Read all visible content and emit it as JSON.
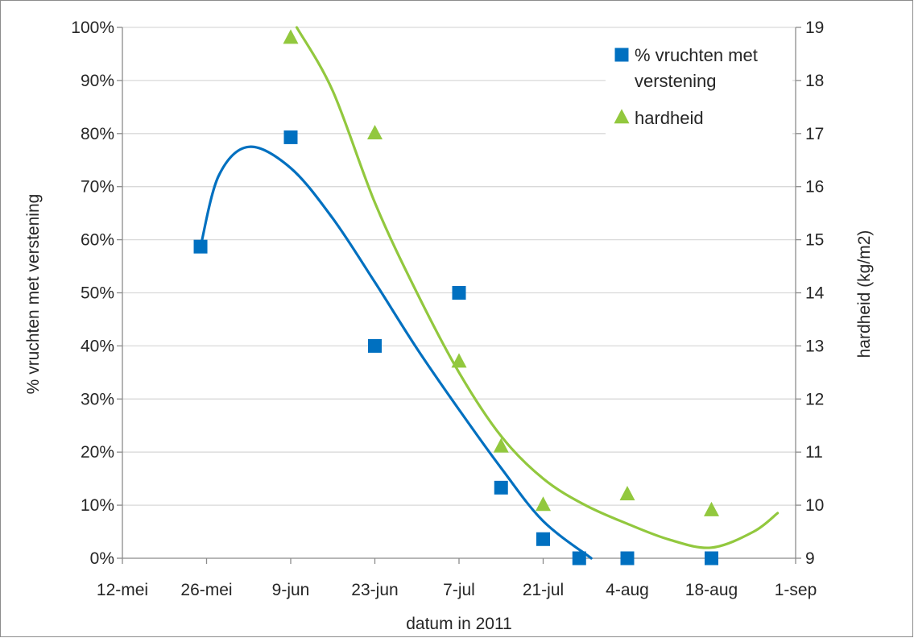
{
  "chart_data": {
    "type": "scatter",
    "xlabel": "datum in 2011",
    "ylabel_left": "% vruchten met verstening",
    "ylabel_right": "hardheid (kg/m2)",
    "x_ticks": [
      "12-mei",
      "26-mei",
      "9-jun",
      "23-jun",
      "7-jul",
      "21-jul",
      "4-aug",
      "18-aug",
      "1-sep"
    ],
    "x_tick_dates": [
      "2011-05-12",
      "2011-05-26",
      "2011-06-09",
      "2011-06-23",
      "2011-07-07",
      "2011-07-21",
      "2011-08-04",
      "2011-08-18",
      "2011-09-01"
    ],
    "x_range": [
      "2011-05-12",
      "2011-09-01"
    ],
    "ylim_left": [
      0,
      100
    ],
    "yticks_left": [
      "0%",
      "10%",
      "20%",
      "30%",
      "40%",
      "50%",
      "60%",
      "70%",
      "80%",
      "90%",
      "100%"
    ],
    "ylim_right": [
      9,
      19
    ],
    "yticks_right": [
      "9",
      "10",
      "11",
      "12",
      "13",
      "14",
      "15",
      "16",
      "17",
      "18",
      "19"
    ],
    "grid": "horizontal",
    "legend_position": "top-right",
    "series": [
      {
        "name": "% vruchten met verstening",
        "axis": "left",
        "marker": "square",
        "color": "#0070C0",
        "trendline": "polynomial",
        "points": [
          {
            "x": "2011-05-25",
            "y": 58.7
          },
          {
            "x": "2011-06-09",
            "y": 79.3
          },
          {
            "x": "2011-06-23",
            "y": 40.0
          },
          {
            "x": "2011-07-07",
            "y": 50.0
          },
          {
            "x": "2011-07-14",
            "y": 13.3
          },
          {
            "x": "2011-07-21",
            "y": 3.6
          },
          {
            "x": "2011-07-27",
            "y": 0.0
          },
          {
            "x": "2011-08-04",
            "y": 0.0
          },
          {
            "x": "2011-08-18",
            "y": 0.0
          }
        ]
      },
      {
        "name": "hardheid",
        "axis": "right",
        "marker": "triangle",
        "color": "#92C83E",
        "trendline": "polynomial",
        "points": [
          {
            "x": "2011-06-09",
            "y": 18.8
          },
          {
            "x": "2011-06-23",
            "y": 17.0
          },
          {
            "x": "2011-07-07",
            "y": 12.7
          },
          {
            "x": "2011-07-14",
            "y": 11.1
          },
          {
            "x": "2011-07-21",
            "y": 10.0
          },
          {
            "x": "2011-08-04",
            "y": 10.2
          },
          {
            "x": "2011-08-18",
            "y": 9.9
          }
        ]
      }
    ],
    "trendlines": [
      {
        "series": "% vruchten met verstening",
        "points": [
          {
            "x": "2011-05-25",
            "y": 58.7
          },
          {
            "x": "2011-05-28",
            "y": 72.0
          },
          {
            "x": "2011-06-02",
            "y": 77.5
          },
          {
            "x": "2011-06-09",
            "y": 73.5
          },
          {
            "x": "2011-06-16",
            "y": 64.0
          },
          {
            "x": "2011-06-23",
            "y": 52.0
          },
          {
            "x": "2011-06-30",
            "y": 39.5
          },
          {
            "x": "2011-07-07",
            "y": 28.0
          },
          {
            "x": "2011-07-14",
            "y": 17.0
          },
          {
            "x": "2011-07-21",
            "y": 7.0
          },
          {
            "x": "2011-07-29",
            "y": 0.0
          }
        ]
      },
      {
        "series": "hardheid",
        "points": [
          {
            "x": "2011-06-10",
            "y": 19.0
          },
          {
            "x": "2011-06-16",
            "y": 17.8
          },
          {
            "x": "2011-06-23",
            "y": 15.7
          },
          {
            "x": "2011-06-30",
            "y": 14.0
          },
          {
            "x": "2011-07-07",
            "y": 12.5
          },
          {
            "x": "2011-07-14",
            "y": 11.3
          },
          {
            "x": "2011-07-21",
            "y": 10.5
          },
          {
            "x": "2011-07-28",
            "y": 10.0
          },
          {
            "x": "2011-08-04",
            "y": 9.65
          },
          {
            "x": "2011-08-11",
            "y": 9.35
          },
          {
            "x": "2011-08-18",
            "y": 9.2
          },
          {
            "x": "2011-08-25",
            "y": 9.5
          },
          {
            "x": "2011-08-29",
            "y": 9.85
          }
        ]
      }
    ],
    "legend": [
      {
        "lines": [
          "% vruchten met",
          "verstening"
        ],
        "marker": "square",
        "color": "#0070C0"
      },
      {
        "lines": [
          "hardheid"
        ],
        "marker": "triangle",
        "color": "#92C83E"
      }
    ]
  }
}
